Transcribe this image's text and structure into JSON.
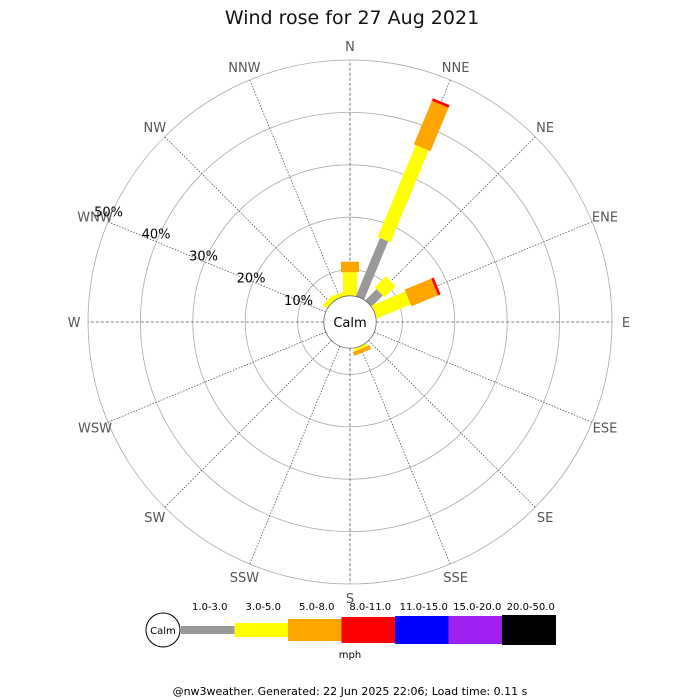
{
  "chart_data": {
    "type": "wind_rose",
    "title": "Wind rose for 27 Aug 2021",
    "directions": [
      "N",
      "NNE",
      "NE",
      "ENE",
      "E",
      "ESE",
      "SE",
      "SSE",
      "S",
      "SSW",
      "SW",
      "WSW",
      "W",
      "WNW",
      "NW",
      "NNW"
    ],
    "rings": [
      10,
      20,
      30,
      40,
      50
    ],
    "ring_labels": [
      "10%",
      "20%",
      "30%",
      "40%",
      "50%"
    ],
    "rmax": 50,
    "calm_label": "Calm",
    "calm_radius_pct": 5,
    "bins": [
      "1.0-3.0",
      "3.0-5.0",
      "5.0-8.0",
      "8.0-11.0",
      "11.0-15.0",
      "15.0-20.0",
      "20.0-50.0"
    ],
    "bin_colors": [
      "#999999",
      "#ffff00",
      "#ffa500",
      "#ff0000",
      "#0000ff",
      "#a020f0",
      "#000000"
    ],
    "unit": "mph",
    "series": [
      {
        "direction": "N",
        "values": [
          0.0,
          4.5,
          2.0,
          0.0,
          0,
          0,
          0
        ]
      },
      {
        "direction": "NNE",
        "values": [
          12.0,
          19.0,
          9.0,
          0.5,
          0,
          0,
          0
        ]
      },
      {
        "direction": "NE",
        "values": [
          3.0,
          3.0,
          0,
          0,
          0,
          0,
          0
        ]
      },
      {
        "direction": "ENE",
        "values": [
          0,
          7.0,
          5.5,
          0.5,
          0,
          0,
          0
        ]
      },
      {
        "direction": "E",
        "values": [
          0,
          0,
          0,
          0,
          0,
          0,
          0
        ]
      },
      {
        "direction": "ESE",
        "values": [
          0,
          0,
          0,
          0,
          0,
          0,
          0
        ]
      },
      {
        "direction": "SE",
        "values": [
          0,
          0,
          0,
          0,
          0,
          0,
          0
        ]
      },
      {
        "direction": "SSE",
        "values": [
          0,
          0.5,
          0.8,
          0,
          0,
          0,
          0
        ]
      },
      {
        "direction": "S",
        "values": [
          0,
          0,
          0,
          0,
          0,
          0,
          0
        ]
      },
      {
        "direction": "SSW",
        "values": [
          0,
          0,
          0,
          0,
          0,
          0,
          0
        ]
      },
      {
        "direction": "SW",
        "values": [
          0,
          0,
          0,
          0,
          0,
          0,
          0
        ]
      },
      {
        "direction": "WSW",
        "values": [
          0,
          0,
          0,
          0,
          0,
          0,
          0
        ]
      },
      {
        "direction": "W",
        "values": [
          0,
          0,
          0,
          0,
          0,
          0,
          0
        ]
      },
      {
        "direction": "WNW",
        "values": [
          0,
          0,
          0,
          0,
          0,
          0,
          0
        ]
      },
      {
        "direction": "NW",
        "values": [
          0,
          1.0,
          0,
          0,
          0,
          0,
          0
        ]
      },
      {
        "direction": "NNW",
        "values": [
          0,
          0.8,
          0,
          0,
          0,
          0,
          0
        ]
      }
    ]
  },
  "footer": "@nw3weather. Generated: 22 Jun 2025 22:06; Load time: 0.11 s"
}
